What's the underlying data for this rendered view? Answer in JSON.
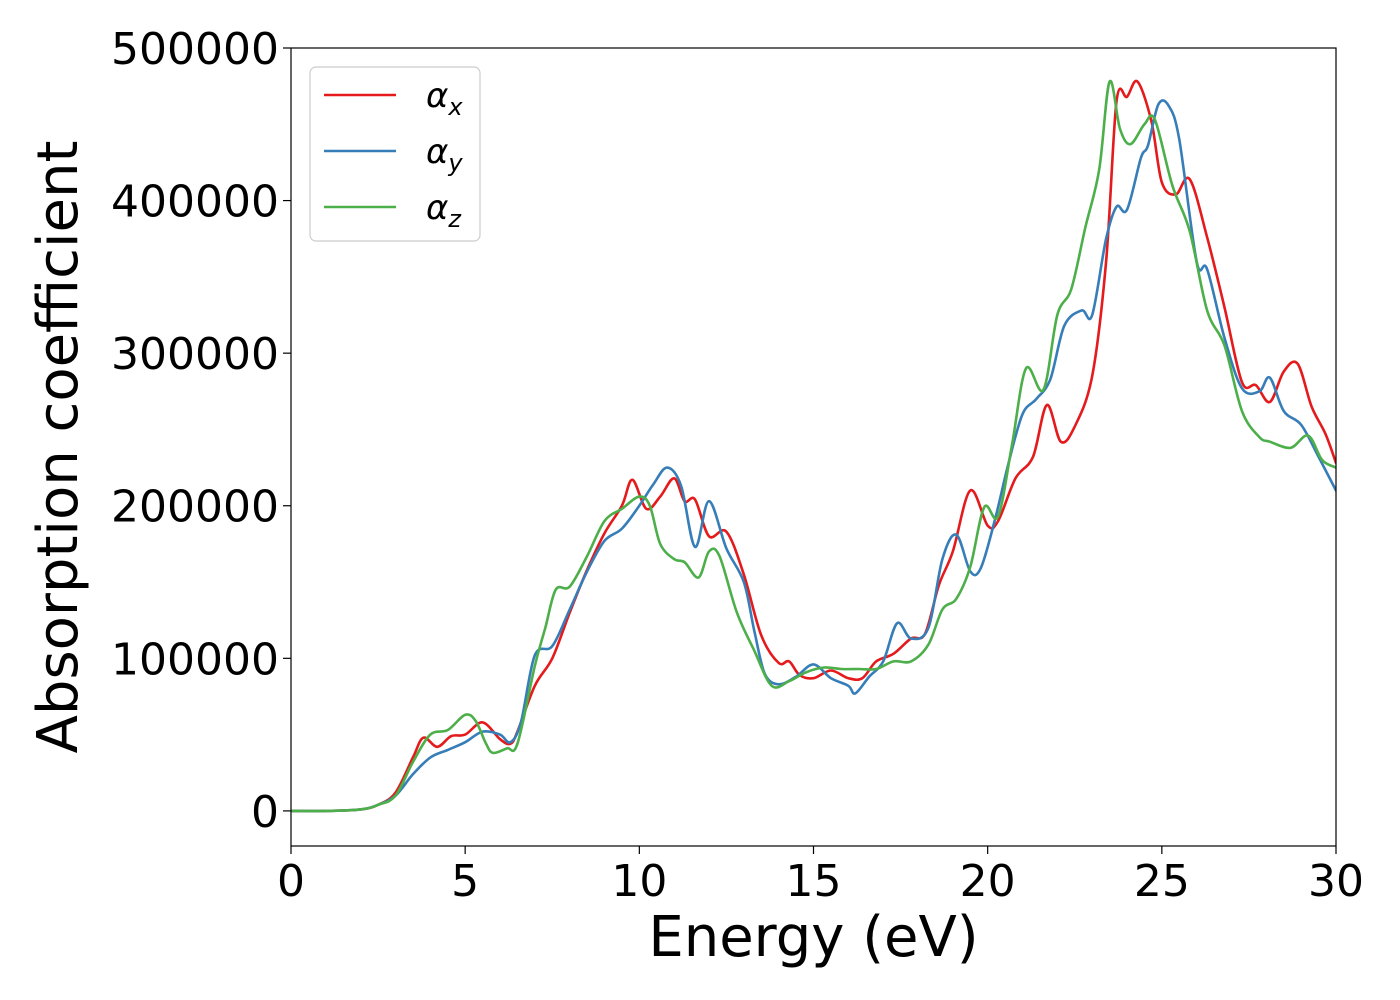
{
  "chart_data": {
    "type": "line",
    "title": "",
    "xlabel": "Energy (eV)",
    "ylabel": "Absorption coefficient",
    "xlim": [
      0,
      30
    ],
    "ylim": [
      -23000,
      500000
    ],
    "xticks": [
      "0",
      "5",
      "10",
      "15",
      "20",
      "25",
      "30"
    ],
    "xtick_values": [
      0,
      5,
      10,
      15,
      20,
      25,
      30
    ],
    "yticks": [
      "0",
      "100000",
      "200000",
      "300000",
      "400000",
      "500000"
    ],
    "ytick_values": [
      0,
      100000,
      200000,
      300000,
      400000,
      500000
    ],
    "grid": false,
    "legend_position": "top-left",
    "series": [
      {
        "name": "αx",
        "legend_base": "α",
        "legend_sub": "x",
        "color": "#e41a1c",
        "points": [
          [
            0,
            0
          ],
          [
            1,
            0
          ],
          [
            2,
            1000
          ],
          [
            2.5,
            4000
          ],
          [
            3,
            12000
          ],
          [
            3.5,
            35000
          ],
          [
            3.8,
            48000
          ],
          [
            4.2,
            42000
          ],
          [
            4.6,
            49000
          ],
          [
            5,
            50000
          ],
          [
            5.5,
            58000
          ],
          [
            6,
            47000
          ],
          [
            6.3,
            44000
          ],
          [
            6.5,
            52000
          ],
          [
            7,
            82000
          ],
          [
            7.5,
            100000
          ],
          [
            8,
            130000
          ],
          [
            8.5,
            158000
          ],
          [
            9,
            182000
          ],
          [
            9.5,
            200000
          ],
          [
            9.8,
            217000
          ],
          [
            10.2,
            198000
          ],
          [
            10.6,
            206000
          ],
          [
            11,
            218000
          ],
          [
            11.3,
            203000
          ],
          [
            11.6,
            204000
          ],
          [
            12,
            180000
          ],
          [
            12.5,
            183000
          ],
          [
            13,
            155000
          ],
          [
            13.5,
            115000
          ],
          [
            14,
            97000
          ],
          [
            14.3,
            98000
          ],
          [
            14.6,
            89000
          ],
          [
            15,
            87000
          ],
          [
            15.5,
            92000
          ],
          [
            16,
            87000
          ],
          [
            16.4,
            87000
          ],
          [
            16.8,
            98000
          ],
          [
            17.3,
            103000
          ],
          [
            17.8,
            113000
          ],
          [
            18.2,
            116000
          ],
          [
            18.6,
            148000
          ],
          [
            19,
            170000
          ],
          [
            19.5,
            210000
          ],
          [
            20,
            187000
          ],
          [
            20.3,
            190000
          ],
          [
            20.8,
            218000
          ],
          [
            21.3,
            232000
          ],
          [
            21.7,
            266000
          ],
          [
            22.1,
            242000
          ],
          [
            22.5,
            252000
          ],
          [
            23,
            285000
          ],
          [
            23.4,
            360000
          ],
          [
            23.7,
            465000
          ],
          [
            24,
            468000
          ],
          [
            24.3,
            478000
          ],
          [
            24.7,
            452000
          ],
          [
            25,
            412000
          ],
          [
            25.4,
            404000
          ],
          [
            25.8,
            414000
          ],
          [
            26.3,
            376000
          ],
          [
            26.8,
            330000
          ],
          [
            27.3,
            281000
          ],
          [
            27.7,
            279000
          ],
          [
            28.1,
            268000
          ],
          [
            28.5,
            288000
          ],
          [
            28.9,
            293000
          ],
          [
            29.3,
            265000
          ],
          [
            29.7,
            247000
          ],
          [
            30,
            228000
          ]
        ]
      },
      {
        "name": "αy",
        "legend_base": "α",
        "legend_sub": "y",
        "color": "#377eb8",
        "points": [
          [
            0,
            0
          ],
          [
            1,
            0
          ],
          [
            2,
            1000
          ],
          [
            2.5,
            4000
          ],
          [
            3,
            10000
          ],
          [
            3.5,
            24000
          ],
          [
            4,
            35000
          ],
          [
            4.5,
            40000
          ],
          [
            5,
            45000
          ],
          [
            5.5,
            52000
          ],
          [
            6,
            50000
          ],
          [
            6.3,
            45000
          ],
          [
            6.6,
            58000
          ],
          [
            7,
            102000
          ],
          [
            7.5,
            108000
          ],
          [
            8,
            132000
          ],
          [
            8.5,
            157000
          ],
          [
            9,
            177000
          ],
          [
            9.5,
            185000
          ],
          [
            10,
            200000
          ],
          [
            10.4,
            214000
          ],
          [
            10.8,
            225000
          ],
          [
            11.2,
            213000
          ],
          [
            11.6,
            173000
          ],
          [
            12,
            203000
          ],
          [
            12.5,
            172000
          ],
          [
            13,
            150000
          ],
          [
            13.3,
            118000
          ],
          [
            13.6,
            90000
          ],
          [
            14,
            83000
          ],
          [
            14.5,
            88000
          ],
          [
            15,
            96000
          ],
          [
            15.5,
            87000
          ],
          [
            16,
            82000
          ],
          [
            16.2,
            77000
          ],
          [
            16.6,
            88000
          ],
          [
            17,
            98000
          ],
          [
            17.4,
            123000
          ],
          [
            17.8,
            113000
          ],
          [
            18.3,
            120000
          ],
          [
            18.7,
            165000
          ],
          [
            19.1,
            181000
          ],
          [
            19.5,
            157000
          ],
          [
            19.8,
            159000
          ],
          [
            20.2,
            190000
          ],
          [
            20.6,
            228000
          ],
          [
            21,
            260000
          ],
          [
            21.4,
            270000
          ],
          [
            21.8,
            283000
          ],
          [
            22.2,
            318000
          ],
          [
            22.7,
            328000
          ],
          [
            23,
            325000
          ],
          [
            23.4,
            375000
          ],
          [
            23.7,
            396000
          ],
          [
            24,
            394000
          ],
          [
            24.4,
            428000
          ],
          [
            24.6,
            436000
          ],
          [
            24.9,
            463000
          ],
          [
            25.2,
            462000
          ],
          [
            25.5,
            440000
          ],
          [
            26,
            360000
          ],
          [
            26.3,
            355000
          ],
          [
            26.8,
            310000
          ],
          [
            27.3,
            277000
          ],
          [
            27.8,
            275000
          ],
          [
            28.1,
            284000
          ],
          [
            28.5,
            262000
          ],
          [
            29,
            253000
          ],
          [
            29.5,
            232000
          ],
          [
            30,
            210000
          ]
        ]
      },
      {
        "name": "αz",
        "legend_base": "α",
        "legend_sub": "z",
        "color": "#4daf4a",
        "points": [
          [
            0,
            0
          ],
          [
            1,
            0
          ],
          [
            2,
            1000
          ],
          [
            2.5,
            4000
          ],
          [
            3,
            10000
          ],
          [
            3.5,
            32000
          ],
          [
            4,
            50000
          ],
          [
            4.5,
            53000
          ],
          [
            5,
            63000
          ],
          [
            5.3,
            59000
          ],
          [
            5.6,
            44000
          ],
          [
            5.8,
            38000
          ],
          [
            6.2,
            41000
          ],
          [
            6.5,
            44000
          ],
          [
            7,
            95000
          ],
          [
            7.3,
            120000
          ],
          [
            7.6,
            145000
          ],
          [
            8,
            147000
          ],
          [
            8.5,
            167000
          ],
          [
            9,
            190000
          ],
          [
            9.5,
            198000
          ],
          [
            10,
            206000
          ],
          [
            10.3,
            200000
          ],
          [
            10.6,
            175000
          ],
          [
            11,
            165000
          ],
          [
            11.3,
            163000
          ],
          [
            11.7,
            153000
          ],
          [
            12,
            170000
          ],
          [
            12.3,
            167000
          ],
          [
            12.8,
            130000
          ],
          [
            13.3,
            105000
          ],
          [
            13.8,
            82000
          ],
          [
            14.3,
            85000
          ],
          [
            14.8,
            91000
          ],
          [
            15.3,
            94000
          ],
          [
            15.8,
            93000
          ],
          [
            16.3,
            93000
          ],
          [
            16.8,
            93000
          ],
          [
            17.3,
            98000
          ],
          [
            17.8,
            98000
          ],
          [
            18.3,
            109000
          ],
          [
            18.7,
            132000
          ],
          [
            19.1,
            139000
          ],
          [
            19.5,
            160000
          ],
          [
            19.9,
            199000
          ],
          [
            20.3,
            193000
          ],
          [
            20.7,
            240000
          ],
          [
            21.1,
            290000
          ],
          [
            21.6,
            276000
          ],
          [
            22,
            325000
          ],
          [
            22.4,
            342000
          ],
          [
            22.8,
            382000
          ],
          [
            23.2,
            420000
          ],
          [
            23.5,
            478000
          ],
          [
            23.8,
            447000
          ],
          [
            24.1,
            437000
          ],
          [
            24.5,
            450000
          ],
          [
            24.8,
            453000
          ],
          [
            25.3,
            410000
          ],
          [
            25.8,
            380000
          ],
          [
            26.3,
            328000
          ],
          [
            26.8,
            305000
          ],
          [
            27.3,
            262000
          ],
          [
            27.8,
            245000
          ],
          [
            28.1,
            242000
          ],
          [
            28.7,
            238000
          ],
          [
            29.2,
            246000
          ],
          [
            29.6,
            230000
          ],
          [
            30,
            225000
          ]
        ]
      }
    ]
  }
}
